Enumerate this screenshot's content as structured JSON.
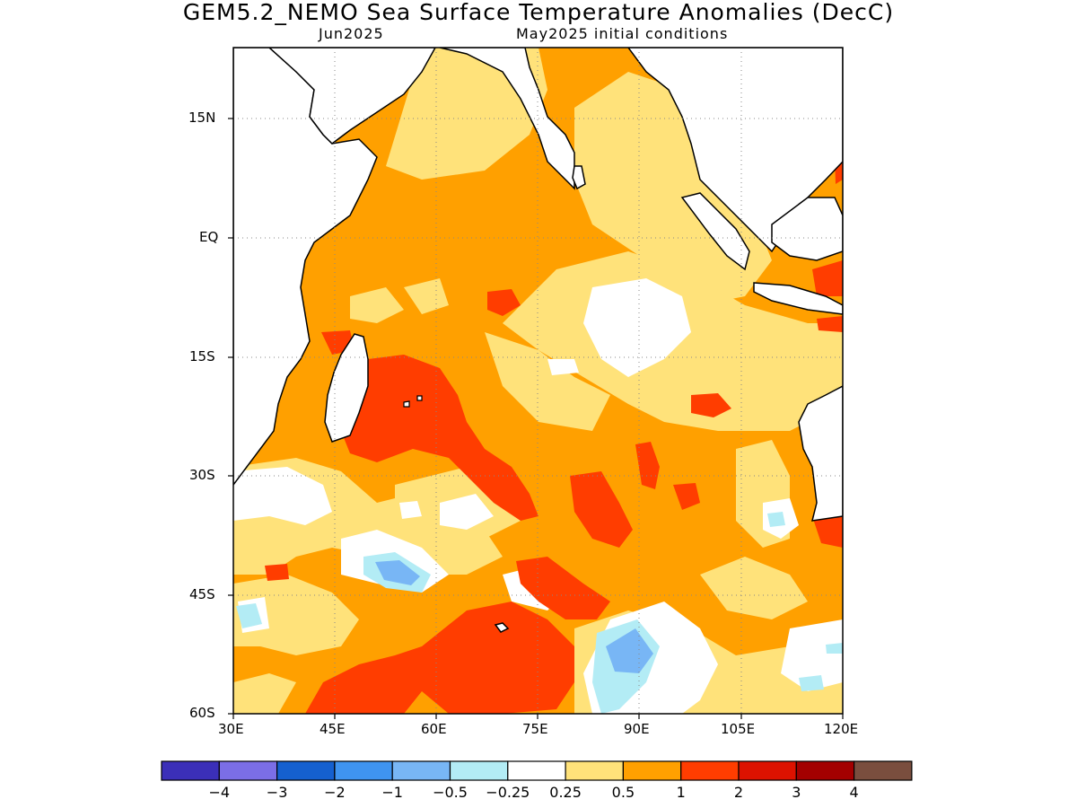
{
  "title": "GEM5.2_NEMO Sea Surface Temperature Anomalies (DecC)",
  "subtitle_left": "Jun2025",
  "subtitle_right": "May2025 initial conditions",
  "lat_ticks": [
    "15N",
    "EQ",
    "15S",
    "30S",
    "45S",
    "60S"
  ],
  "lon_ticks": [
    "30E",
    "45E",
    "60E",
    "75E",
    "90E",
    "105E",
    "120E"
  ],
  "map_extent": {
    "lon_range": [
      30,
      120
    ],
    "lat_range": [
      -60,
      24
    ]
  },
  "colorbar": {
    "labels": [
      "−4",
      "−3",
      "−2",
      "−1",
      "−0.5",
      "−0.25",
      "0.25",
      "0.5",
      "1",
      "2",
      "3",
      "4"
    ],
    "colors": [
      "#3b2fb8",
      "#7b6ee6",
      "#1560cf",
      "#3f94f0",
      "#78b6f5",
      "#b3ecf5",
      "#ffffff",
      "#ffe27a",
      "#ffa000",
      "#ff3d00",
      "#dd1200",
      "#a30000",
      "#7a4e3e"
    ]
  },
  "palette": {
    "warm_050": "#ffe27a",
    "warm_1": "#ffa000",
    "warm_2": "#ff3d00",
    "cool_025": "#b3ecf5",
    "cool_05": "#78b6f5"
  }
}
